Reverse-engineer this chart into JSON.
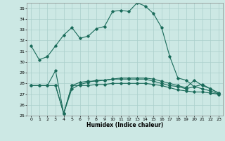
{
  "xlabel": "Humidex (Indice chaleur)",
  "bg_color": "#cce8e4",
  "line_color": "#1a6b5a",
  "grid_color": "#aacfcb",
  "xlim": [
    -0.5,
    23.5
  ],
  "ylim": [
    25,
    35.5
  ],
  "yticks": [
    25,
    26,
    27,
    28,
    29,
    30,
    31,
    32,
    33,
    34,
    35
  ],
  "xticks": [
    0,
    1,
    2,
    3,
    4,
    5,
    6,
    7,
    8,
    9,
    10,
    11,
    12,
    13,
    14,
    15,
    16,
    17,
    18,
    19,
    20,
    21,
    22,
    23
  ],
  "line1_x": [
    0,
    1,
    2,
    3,
    4,
    5,
    6,
    7,
    8,
    9,
    10,
    11,
    12,
    13,
    14,
    15,
    16,
    17,
    18,
    19,
    20,
    21,
    22,
    23
  ],
  "line1_y": [
    31.5,
    30.2,
    30.5,
    31.5,
    32.5,
    33.2,
    32.2,
    32.4,
    33.1,
    33.3,
    34.7,
    34.8,
    34.7,
    35.5,
    35.2,
    34.5,
    33.2,
    30.5,
    28.5,
    28.3,
    27.7,
    27.5,
    27.3,
    27.0
  ],
  "line2_x": [
    0,
    1,
    2,
    3,
    4,
    5,
    6,
    7,
    8,
    9,
    10,
    11,
    12,
    13,
    14,
    15,
    16,
    17,
    18,
    19,
    20,
    21,
    22,
    23
  ],
  "line2_y": [
    27.8,
    27.8,
    27.8,
    29.2,
    25.2,
    27.8,
    28.1,
    28.2,
    28.2,
    28.3,
    28.4,
    28.4,
    28.4,
    28.4,
    28.4,
    28.2,
    28.0,
    27.8,
    27.7,
    27.5,
    27.7,
    27.9,
    27.5,
    27.1
  ],
  "line3_x": [
    0,
    1,
    2,
    3,
    4,
    5,
    6,
    7,
    8,
    9,
    10,
    11,
    12,
    13,
    14,
    15,
    16,
    17,
    18,
    19,
    20,
    21,
    22,
    23
  ],
  "line3_y": [
    27.8,
    27.8,
    27.8,
    27.8,
    25.2,
    27.8,
    27.8,
    27.8,
    27.9,
    27.9,
    28.0,
    28.0,
    28.0,
    28.0,
    28.0,
    27.9,
    27.8,
    27.6,
    27.4,
    27.3,
    27.2,
    27.2,
    27.1,
    27.0
  ],
  "line4_x": [
    3,
    4,
    5,
    6,
    7,
    8,
    9,
    10,
    11,
    12,
    13,
    14,
    15,
    16,
    17,
    18,
    19,
    20,
    21,
    22,
    23
  ],
  "line4_y": [
    27.8,
    25.2,
    27.5,
    27.9,
    28.1,
    28.3,
    28.3,
    28.4,
    28.5,
    28.5,
    28.5,
    28.5,
    28.4,
    28.2,
    28.0,
    27.8,
    27.6,
    28.3,
    27.8,
    27.5,
    27.1
  ]
}
